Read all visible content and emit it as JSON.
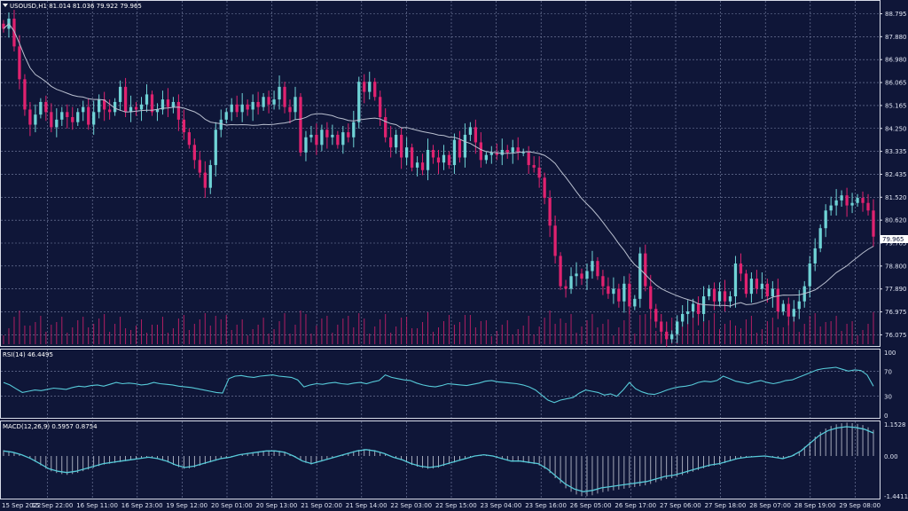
{
  "header": {
    "symbol_menu_icon": "triangle-down-icon",
    "info": "USOUSD,H1  81.014 81.036 79.922 79.965"
  },
  "price_panel": {
    "current_price_label": "79.965",
    "y_labels": [
      "88.795",
      "87.880",
      "86.980",
      "86.065",
      "85.165",
      "84.250",
      "83.335",
      "82.435",
      "81.520",
      "80.620",
      "79.705",
      "78.800",
      "77.890",
      "76.975",
      "76.075"
    ]
  },
  "rsi_panel": {
    "label": "RSI(14) 46.4495",
    "y_labels": [
      "100",
      "70",
      "30",
      "0"
    ]
  },
  "macd_panel": {
    "label": "MACD(12,26,9) 0.5957 0.8754",
    "y_labels": [
      "1.1528",
      "0.00",
      "-1.4411"
    ]
  },
  "time_axis": {
    "labels": [
      "15 Sep 2022",
      "15 Sep 22:00",
      "16 Sep 11:00",
      "16 Sep 23:00",
      "19 Sep 12:00",
      "20 Sep 01:00",
      "20 Sep 13:00",
      "21 Sep 02:00",
      "21 Sep 14:00",
      "22 Sep 03:00",
      "22 Sep 15:00",
      "23 Sep 04:00",
      "23 Sep 16:00",
      "26 Sep 05:00",
      "26 Sep 17:00",
      "27 Sep 06:00",
      "27 Sep 18:00",
      "28 Sep 07:00",
      "28 Sep 19:00",
      "29 Sep 08:00"
    ]
  },
  "colors": {
    "background": "#0f1638",
    "grid": "#7d86a8",
    "bull": "#6fd3d6",
    "bear": "#e0226f",
    "ma": "#b9bfcf",
    "rsi": "#56c9d8",
    "macd_signal": "#56c9d8",
    "macd_hist": "#c8ccd8",
    "volume": "#b01f63"
  },
  "chart_data": [
    {
      "type": "candlestick",
      "title": "USOUSD,H1",
      "ylim": [
        75.4,
        89.3
      ],
      "ohlc_last": {
        "open": 81.014,
        "high": 81.036,
        "low": 79.922,
        "close": 79.965
      },
      "close": [
        88.2,
        88.6,
        87.5,
        86.2,
        85.0,
        84.4,
        84.8,
        85.3,
        84.9,
        84.3,
        84.6,
        84.9,
        84.7,
        84.5,
        84.9,
        85.1,
        84.4,
        84.9,
        85.4,
        85.0,
        84.9,
        85.3,
        85.9,
        84.9,
        85.1,
        85.0,
        85.2,
        85.6,
        84.9,
        85.0,
        85.4,
        85.1,
        85.3,
        84.6,
        84.1,
        83.6,
        83.0,
        82.5,
        81.9,
        82.8,
        84.2,
        84.6,
        84.9,
        85.2,
        84.9,
        85.2,
        85.0,
        85.3,
        85.1,
        85.5,
        85.2,
        85.4,
        85.9,
        85.1,
        84.9,
        85.5,
        83.3,
        83.9,
        84.0,
        83.6,
        84.2,
        83.9,
        84.0,
        83.6,
        84.1,
        83.9,
        84.5,
        86.1,
        85.7,
        86.1,
        85.5,
        84.7,
        83.9,
        83.5,
        84.0,
        83.1,
        83.5,
        82.7,
        82.9,
        82.6,
        83.4,
        83.1,
        82.9,
        83.2,
        82.8,
        83.8,
        83.1,
        84.0,
        84.3,
        83.7,
        83.0,
        83.2,
        83.3,
        83.2,
        83.4,
        83.3,
        83.5,
        83.3,
        83.3,
        82.8,
        82.7,
        82.3,
        81.5,
        80.4,
        79.2,
        78.0,
        77.9,
        78.4,
        78.5,
        78.3,
        78.6,
        79.0,
        78.4,
        78.0,
        77.7,
        77.9,
        77.4,
        78.1,
        77.2,
        77.5,
        79.3,
        78.0,
        77.1,
        76.6,
        76.2,
        75.9,
        76.1,
        76.6,
        76.9,
        77.0,
        77.3,
        76.9,
        77.6,
        77.9,
        77.4,
        77.8,
        77.4,
        77.6,
        78.9,
        78.5,
        77.7,
        78.3,
        77.9,
        78.1,
        77.6,
        77.9,
        77.0,
        77.3,
        76.8,
        77.1,
        77.4,
        78.0,
        78.9,
        79.5,
        80.3,
        81.0,
        81.2,
        81.4,
        81.6,
        81.2,
        81.3,
        81.5,
        81.3,
        81.0,
        79.965
      ],
      "ma_period_visible": true
    },
    {
      "type": "line",
      "title": "RSI(14) 46.4495",
      "ylim": [
        0,
        100
      ],
      "series": [
        {
          "values": [
            52,
            48,
            42,
            36,
            38,
            40,
            39,
            41,
            43,
            42,
            41,
            44,
            46,
            45,
            47,
            48,
            46,
            49,
            52,
            50,
            51,
            50,
            48,
            49,
            52,
            50,
            49,
            48,
            46,
            45,
            44,
            42,
            40,
            38,
            36,
            35,
            58,
            62,
            63,
            61,
            60,
            62,
            63,
            64,
            62,
            61,
            60,
            56,
            45,
            48,
            50,
            49,
            51,
            52,
            50,
            49,
            51,
            52,
            50,
            53,
            55,
            64,
            60,
            58,
            56,
            55,
            51,
            48,
            46,
            45,
            47,
            50,
            49,
            48,
            47,
            49,
            51,
            54,
            55,
            53,
            52,
            51,
            50,
            48,
            45,
            40,
            32,
            24,
            20,
            24,
            26,
            28,
            35,
            40,
            38,
            36,
            32,
            34,
            30,
            40,
            52,
            42,
            37,
            34,
            33,
            36,
            40,
            43,
            45,
            46,
            48,
            52,
            54,
            53,
            55,
            62,
            58,
            54,
            52,
            50,
            53,
            55,
            52,
            50,
            52,
            55,
            56,
            60,
            64,
            68,
            72,
            74,
            75,
            76,
            73,
            70,
            72,
            71,
            64,
            46
          ]
        }
      ]
    },
    {
      "type": "bar+line",
      "title": "MACD(12,26,9) 0.5957 0.8754",
      "ylim": [
        -1.4411,
        1.1528
      ],
      "series": [
        {
          "values": [
            0.2,
            0.15,
            0.05,
            -0.1,
            -0.3,
            -0.5,
            -0.6,
            -0.65,
            -0.6,
            -0.5,
            -0.4,
            -0.3,
            -0.25,
            -0.2,
            -0.15,
            -0.1,
            -0.05,
            -0.1,
            -0.2,
            -0.35,
            -0.45,
            -0.4,
            -0.3,
            -0.2,
            -0.1,
            -0.05,
            0.05,
            0.1,
            0.15,
            0.2,
            0.2,
            0.15,
            0.0,
            -0.2,
            -0.3,
            -0.2,
            -0.1,
            0.0,
            0.1,
            0.2,
            0.25,
            0.2,
            0.1,
            -0.05,
            -0.15,
            -0.3,
            -0.4,
            -0.45,
            -0.4,
            -0.3,
            -0.2,
            -0.1,
            0.0,
            0.05,
            0.0,
            -0.1,
            -0.2,
            -0.2,
            -0.25,
            -0.3,
            -0.5,
            -0.8,
            -1.1,
            -1.3,
            -1.4,
            -1.35,
            -1.25,
            -1.2,
            -1.15,
            -1.1,
            -1.05,
            -1.0,
            -0.9,
            -0.8,
            -0.75,
            -0.65,
            -0.55,
            -0.45,
            -0.35,
            -0.3,
            -0.2,
            -0.1,
            -0.05,
            -0.02,
            0.0,
            -0.05,
            -0.1,
            0.0,
            0.2,
            0.5,
            0.8,
            1.0,
            1.1,
            1.15,
            1.12,
            1.05,
            0.9
          ]
        }
      ]
    }
  ]
}
